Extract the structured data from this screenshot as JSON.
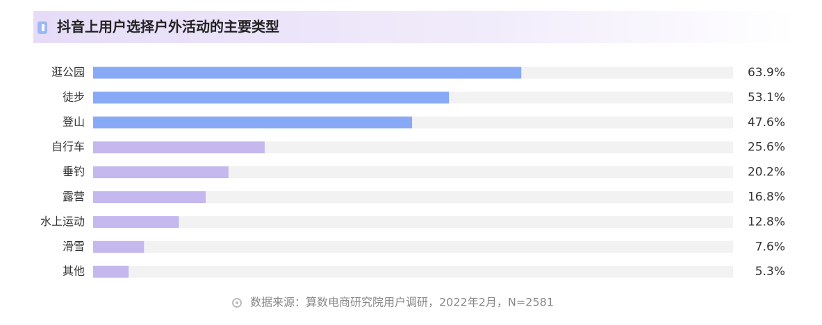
{
  "chart_data": {
    "type": "bar",
    "orientation": "horizontal",
    "title": "抖音上用户选择户外活动的主要类型",
    "categories": [
      "逛公园",
      "徒步",
      "登山",
      "自行车",
      "垂钓",
      "露营",
      "水上运动",
      "滑雪",
      "其他"
    ],
    "values": [
      63.9,
      53.1,
      47.6,
      25.6,
      20.2,
      16.8,
      12.8,
      7.6,
      5.3
    ],
    "value_labels": [
      "63.9%",
      "53.1%",
      "47.6%",
      "25.6%",
      "20.2%",
      "16.8%",
      "12.8%",
      "7.6%",
      "5.3%"
    ],
    "colors": [
      "#88aaf6",
      "#88aaf6",
      "#88aaf6",
      "#c4b8ee",
      "#c4b8ee",
      "#c4b8ee",
      "#c4b8ee",
      "#c4b8ee",
      "#c4b8ee"
    ],
    "xlim": [
      0,
      95.5
    ],
    "source": "数据来源：算数电商研究院用户调研，2022年2月，N=2581"
  }
}
